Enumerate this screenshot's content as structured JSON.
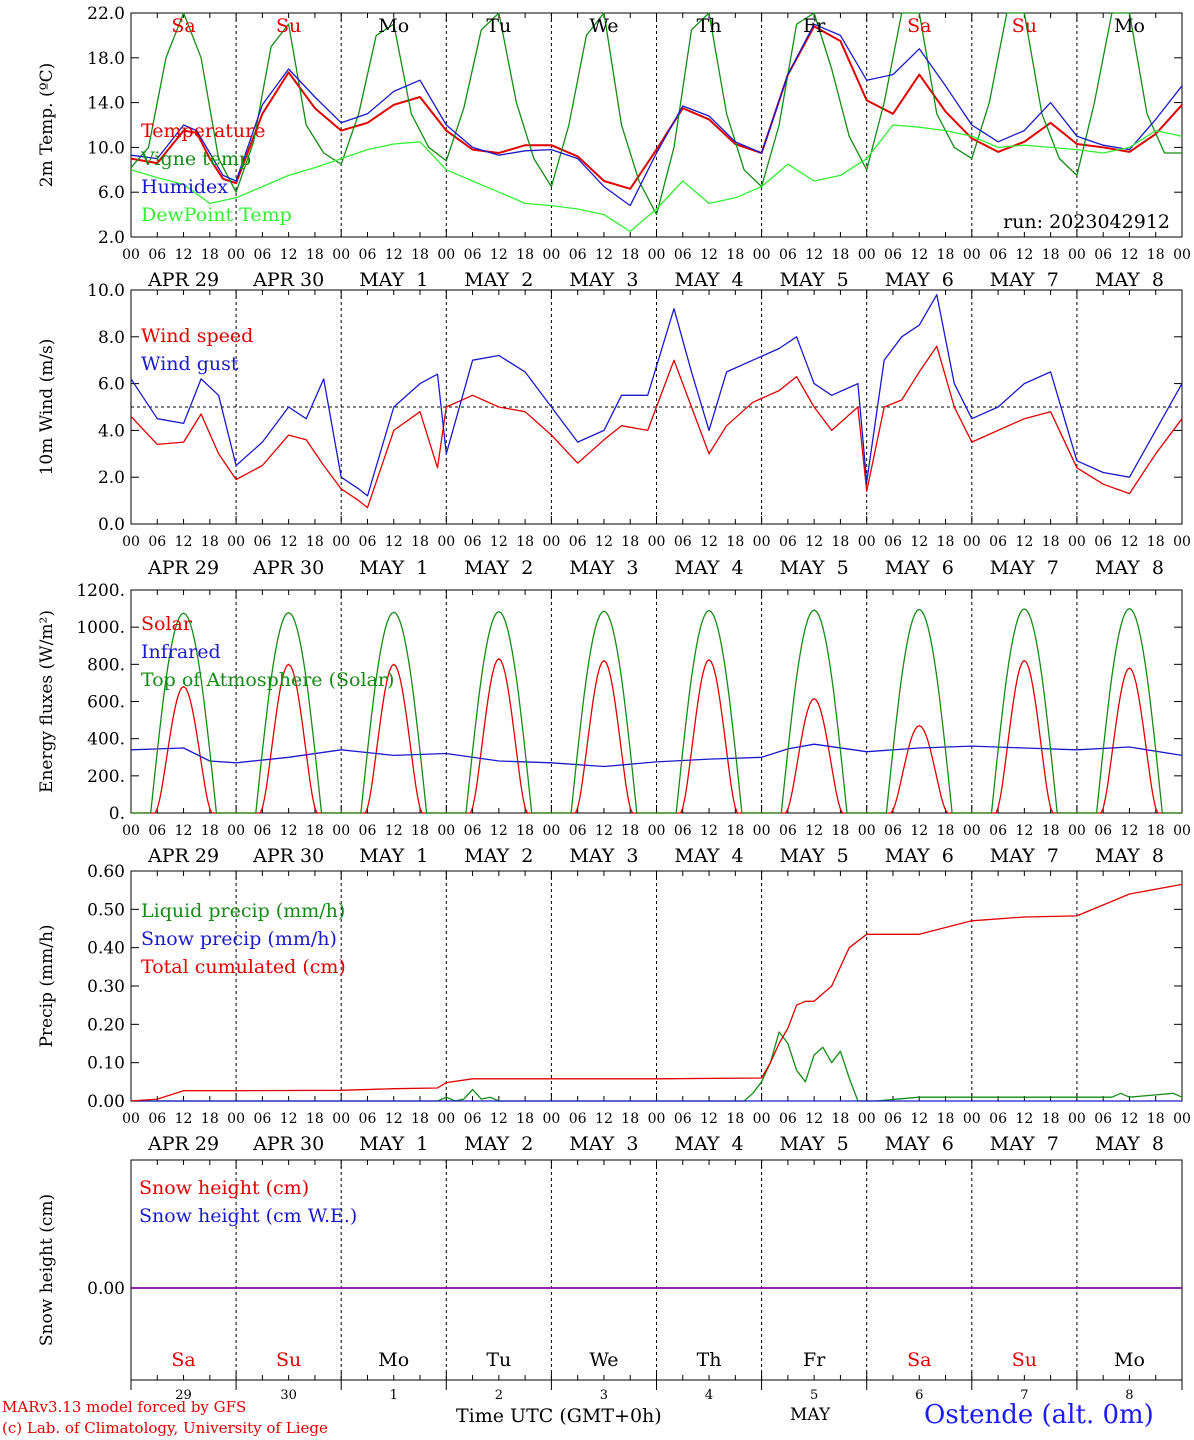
{
  "run_label": "run: 2023042912",
  "footer": {
    "credit_line1": "MARv3.13 model forced by GFS",
    "credit_line2": "(c) Lab. of Climatology, University of Liege",
    "time_label": "Time UTC (GMT+0h)",
    "month_label": "MAY",
    "station": "Ostende (alt. 0m)"
  },
  "days": {
    "weekday_labels": [
      "Sa",
      "Su",
      "Mo",
      "Tu",
      "We",
      "Th",
      "Fr",
      "Sa",
      "Su",
      "Mo"
    ],
    "weekend_flags": [
      true,
      true,
      false,
      false,
      false,
      false,
      false,
      true,
      true,
      false
    ],
    "date_labels": [
      "APR 29",
      "APR 30",
      "MAY  1",
      "MAY  2",
      "MAY  3",
      "MAY  4",
      "MAY  5",
      "MAY  6",
      "MAY  7",
      "MAY  8"
    ],
    "day_numbers": [
      "29",
      "30",
      "1",
      "2",
      "3",
      "4",
      "5",
      "6",
      "7",
      "8"
    ],
    "hour_ticks": [
      "00",
      "06",
      "12",
      "18"
    ],
    "final_tick": "00"
  },
  "colors": {
    "red": "#e00000",
    "green": "#148c14",
    "blue": "#1a1acd",
    "lightgreen": "#33ee33",
    "purple": "#8000a0",
    "weekend": "#e00000"
  },
  "chart_data": [
    {
      "type": "line",
      "ylabel": "2m Temp. (ºC)",
      "ylim": [
        2.0,
        22.0
      ],
      "yticks": [
        "2.0",
        "6.0",
        "10.0",
        "14.0",
        "18.0",
        "22.0"
      ],
      "x_unit": "hours since APR 29 00 UTC",
      "xlim": [
        0,
        240
      ],
      "series": [
        {
          "name": "Temperature",
          "color": "red",
          "x": [
            0,
            6,
            12,
            15,
            18,
            21,
            24,
            30,
            36,
            42,
            48,
            54,
            60,
            66,
            72,
            78,
            84,
            90,
            96,
            102,
            108,
            114,
            120,
            126,
            132,
            138,
            144,
            150,
            156,
            162,
            168,
            174,
            180,
            186,
            192,
            198,
            204,
            210,
            216,
            222,
            228,
            234,
            240
          ],
          "y": [
            9.0,
            8.6,
            11.5,
            11.3,
            9.0,
            7.2,
            6.8,
            13.0,
            16.7,
            13.5,
            11.5,
            12.2,
            13.8,
            14.5,
            11.5,
            9.8,
            9.5,
            10.2,
            10.2,
            9.2,
            7.0,
            6.3,
            9.8,
            13.5,
            12.5,
            10.3,
            9.5,
            16.5,
            20.8,
            19.5,
            14.2,
            13.0,
            16.5,
            13.2,
            10.8,
            9.6,
            10.5,
            12.2,
            10.3,
            10.0,
            9.6,
            11.2,
            13.8
          ]
        },
        {
          "name": "Vigne temp",
          "color": "green",
          "x": [
            0,
            4,
            8,
            12,
            16,
            20,
            24,
            28,
            32,
            36,
            40,
            44,
            48,
            52,
            56,
            60,
            64,
            68,
            72,
            76,
            80,
            84,
            88,
            92,
            96,
            100,
            104,
            108,
            112,
            116,
            120,
            124,
            128,
            132,
            136,
            140,
            144,
            148,
            152,
            156,
            160,
            164,
            168,
            172,
            176,
            180,
            184,
            188,
            192,
            196,
            200,
            204,
            208,
            212,
            216,
            220,
            224,
            228,
            232,
            236,
            240
          ],
          "y": [
            8.2,
            10.0,
            18.0,
            22.0,
            18.0,
            9.0,
            6.0,
            10.5,
            19.0,
            21.0,
            12.0,
            9.5,
            8.5,
            13.0,
            20.0,
            21.0,
            13.0,
            10.0,
            8.8,
            13.5,
            20.5,
            22.0,
            14.0,
            9.0,
            6.5,
            12.0,
            20.0,
            22.0,
            12.0,
            7.0,
            4.0,
            10.0,
            20.5,
            22.0,
            13.0,
            8.0,
            6.5,
            12.0,
            21.0,
            22.0,
            17.0,
            11.0,
            8.0,
            14.0,
            22.0,
            22.0,
            13.0,
            10.0,
            9.0,
            14.0,
            22.0,
            22.0,
            13.0,
            9.0,
            7.5,
            14.0,
            22.0,
            22.0,
            13.0,
            9.5,
            9.5
          ]
        },
        {
          "name": "Humidex",
          "color": "blue",
          "x": [
            0,
            6,
            12,
            15,
            18,
            21,
            24,
            30,
            36,
            42,
            48,
            54,
            60,
            66,
            72,
            78,
            84,
            90,
            96,
            102,
            108,
            114,
            120,
            126,
            132,
            138,
            144,
            150,
            156,
            162,
            168,
            174,
            180,
            186,
            192,
            198,
            204,
            210,
            216,
            222,
            228,
            234,
            240
          ],
          "y": [
            9.3,
            9.0,
            12.0,
            11.5,
            9.5,
            7.5,
            7.0,
            13.8,
            17.0,
            14.5,
            12.2,
            13.0,
            15.0,
            16.0,
            12.0,
            10.0,
            9.3,
            9.7,
            9.8,
            9.0,
            6.5,
            4.8,
            9.5,
            13.7,
            12.8,
            10.5,
            9.5,
            16.5,
            21.0,
            20.0,
            16.0,
            16.5,
            18.8,
            15.5,
            12.0,
            10.5,
            11.5,
            14.0,
            11.0,
            10.2,
            9.8,
            12.5,
            15.5
          ]
        },
        {
          "name": "DewPoint Temp",
          "color": "lightgreen",
          "x": [
            0,
            6,
            12,
            18,
            24,
            30,
            36,
            42,
            48,
            54,
            60,
            66,
            72,
            78,
            84,
            90,
            96,
            102,
            108,
            114,
            120,
            126,
            132,
            138,
            144,
            150,
            156,
            162,
            168,
            174,
            180,
            186,
            192,
            198,
            204,
            210,
            216,
            222,
            228,
            234,
            240
          ],
          "y": [
            8.0,
            7.3,
            6.7,
            5.0,
            5.5,
            6.5,
            7.5,
            8.2,
            9.0,
            9.8,
            10.3,
            10.5,
            8.0,
            7.0,
            6.0,
            5.0,
            4.8,
            4.5,
            4.0,
            2.5,
            4.5,
            7.0,
            5.0,
            5.5,
            6.5,
            8.5,
            7.0,
            7.5,
            9.0,
            12.0,
            11.8,
            11.5,
            11.0,
            10.0,
            10.2,
            10.0,
            9.8,
            9.5,
            10.0,
            11.5,
            11.0
          ]
        }
      ]
    },
    {
      "type": "line",
      "ylabel": "10m Wind (m/s)",
      "ylim": [
        0.0,
        10.0
      ],
      "yticks": [
        "0.0",
        "2.0",
        "4.0",
        "6.0",
        "8.0",
        "10.0"
      ],
      "reference_line": 5.0,
      "x_unit": "hours since APR 29 00 UTC",
      "xlim": [
        0,
        240
      ],
      "series": [
        {
          "name": "Wind speed",
          "color": "red",
          "x": [
            0,
            6,
            12,
            16,
            20,
            24,
            30,
            36,
            40,
            44,
            48,
            52,
            54,
            60,
            66,
            70,
            72,
            78,
            84,
            90,
            96,
            102,
            108,
            112,
            118,
            124,
            128,
            132,
            136,
            142,
            148,
            152,
            156,
            160,
            166,
            168,
            172,
            176,
            180,
            184,
            188,
            192,
            198,
            204,
            210,
            216,
            222,
            228,
            234,
            240
          ],
          "y": [
            4.6,
            3.4,
            3.5,
            4.7,
            3.0,
            1.9,
            2.5,
            3.8,
            3.6,
            2.5,
            1.5,
            1.0,
            0.7,
            4.0,
            4.8,
            2.4,
            5.0,
            5.5,
            5.0,
            4.8,
            3.8,
            2.6,
            3.6,
            4.2,
            4.0,
            7.0,
            5.0,
            3.0,
            4.2,
            5.2,
            5.7,
            6.3,
            5.0,
            4.0,
            5.0,
            1.4,
            5.0,
            5.3,
            6.5,
            7.6,
            5.0,
            3.5,
            4.0,
            4.5,
            4.8,
            2.4,
            1.7,
            1.3,
            3.0,
            4.5
          ]
        },
        {
          "name": "Wind gust",
          "color": "blue",
          "x": [
            0,
            6,
            12,
            16,
            20,
            24,
            30,
            36,
            40,
            44,
            48,
            52,
            54,
            60,
            66,
            70,
            72,
            78,
            84,
            90,
            96,
            102,
            108,
            112,
            118,
            124,
            128,
            132,
            136,
            142,
            148,
            152,
            156,
            160,
            166,
            168,
            172,
            176,
            180,
            184,
            188,
            192,
            198,
            204,
            210,
            216,
            222,
            228,
            234,
            240
          ],
          "y": [
            6.2,
            4.5,
            4.3,
            6.2,
            5.5,
            2.5,
            3.5,
            5.0,
            4.5,
            6.2,
            2.0,
            1.5,
            1.2,
            5.0,
            6.0,
            6.4,
            3.0,
            7.0,
            7.2,
            6.5,
            5.0,
            3.5,
            4.0,
            5.5,
            5.5,
            9.2,
            6.5,
            4.0,
            6.5,
            7.0,
            7.5,
            8.0,
            6.0,
            5.5,
            6.0,
            1.8,
            7.0,
            8.0,
            8.5,
            9.8,
            6.0,
            4.5,
            5.0,
            6.0,
            6.5,
            2.7,
            2.2,
            2.0,
            4.0,
            6.0
          ]
        }
      ]
    },
    {
      "type": "line",
      "ylabel": "Energy fluxes (W/m²)",
      "ylim": [
        0,
        1200
      ],
      "yticks": [
        "0.",
        "200.",
        "400.",
        "600.",
        "800.",
        "1000.",
        "1200."
      ],
      "x_unit": "hours since APR 29 00 UTC",
      "xlim": [
        0,
        240
      ],
      "daily_maxima": {
        "top_of_atmosphere_solar": [
          1075,
          1078,
          1080,
          1083,
          1086,
          1089,
          1092,
          1095,
          1098,
          1100
        ],
        "solar": [
          680,
          800,
          800,
          830,
          820,
          825,
          615,
          470,
          820,
          780
        ]
      },
      "series": [
        {
          "name": "Solar",
          "color": "red"
        },
        {
          "name": "Infrared",
          "color": "blue",
          "x": [
            0,
            12,
            18,
            24,
            36,
            48,
            60,
            72,
            84,
            96,
            108,
            120,
            132,
            144,
            150,
            156,
            168,
            180,
            192,
            204,
            216,
            228,
            240
          ],
          "y": [
            340,
            350,
            280,
            270,
            300,
            340,
            310,
            320,
            280,
            270,
            250,
            275,
            290,
            300,
            345,
            370,
            330,
            350,
            360,
            350,
            340,
            355,
            310
          ]
        },
        {
          "name": "Top of Atmosphere (Solar)",
          "color": "green"
        }
      ]
    },
    {
      "type": "line",
      "ylabel": "Precip (mm/h)",
      "ylim": [
        0.0,
        0.6
      ],
      "yticks": [
        "0.00",
        "0.10",
        "0.20",
        "0.30",
        "0.40",
        "0.50",
        "0.60"
      ],
      "x_unit": "hours since APR 29 00 UTC",
      "xlim": [
        0,
        240
      ],
      "series": [
        {
          "name": "Liquid precip (mm/h)",
          "color": "green",
          "x": [
            0,
            70,
            72,
            74,
            76,
            78,
            80,
            82,
            84,
            140,
            142,
            144,
            146,
            148,
            150,
            152,
            154,
            156,
            158,
            160,
            162,
            164,
            166,
            170,
            180,
            224,
            226,
            228,
            238,
            240
          ],
          "y": [
            0,
            0,
            0.01,
            0,
            0.005,
            0.03,
            0.005,
            0.01,
            0,
            0,
            0.02,
            0.05,
            0.1,
            0.18,
            0.15,
            0.08,
            0.05,
            0.12,
            0.14,
            0.1,
            0.13,
            0.06,
            0,
            0,
            0.01,
            0.01,
            0.02,
            0.01,
            0.02,
            0.01
          ]
        },
        {
          "name": "Snow precip (mm/h)",
          "color": "blue",
          "x": [
            0,
            240
          ],
          "y": [
            0,
            0
          ]
        },
        {
          "name": "Total cumulated (cm)",
          "color": "red",
          "x": [
            0,
            6,
            12,
            24,
            48,
            60,
            70,
            72,
            78,
            84,
            96,
            120,
            144,
            146,
            148,
            150,
            152,
            154,
            156,
            160,
            164,
            168,
            174,
            180,
            192,
            204,
            216,
            228,
            240
          ],
          "y": [
            0,
            0.005,
            0.027,
            0.027,
            0.028,
            0.032,
            0.034,
            0.048,
            0.058,
            0.058,
            0.058,
            0.058,
            0.06,
            0.1,
            0.15,
            0.19,
            0.25,
            0.26,
            0.26,
            0.3,
            0.4,
            0.435,
            0.435,
            0.435,
            0.47,
            0.48,
            0.483,
            0.54,
            0.565
          ]
        }
      ]
    },
    {
      "type": "line",
      "ylabel": "Snow height (cm)",
      "yticks": [
        "0.00"
      ],
      "x_unit": "hours since APR 29 00 UTC",
      "xlim": [
        0,
        240
      ],
      "series": [
        {
          "name": "Snow height (cm)",
          "color": "red",
          "x": [
            0,
            240
          ],
          "y": [
            0,
            0
          ]
        },
        {
          "name": "Snow height (cm W.E.)",
          "color": "blue",
          "x": [
            0,
            240
          ],
          "y": [
            0,
            0
          ]
        }
      ]
    }
  ]
}
